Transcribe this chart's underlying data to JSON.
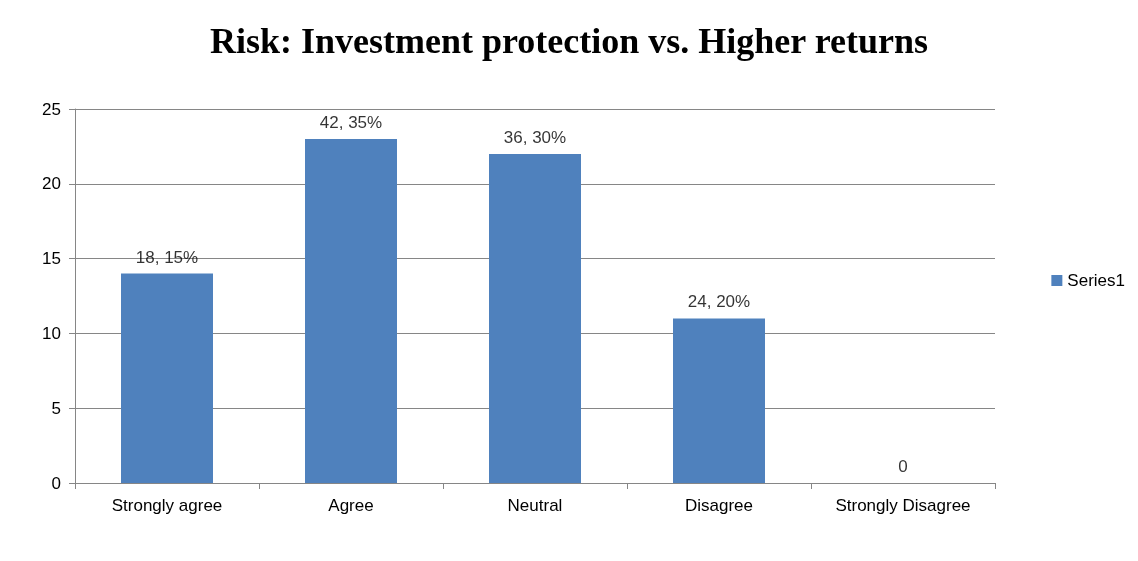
{
  "chart_data": {
    "type": "bar",
    "title": "Risk: Investment protection vs. Higher returns",
    "categories": [
      "Strongly agree",
      "Agree",
      "Neutral",
      "Disagree",
      "Strongly Disagree"
    ],
    "series": [
      {
        "name": "Series1",
        "color": "#4f81bd",
        "values": [
          14,
          23,
          22,
          11,
          0
        ]
      }
    ],
    "annotations": [
      {
        "text": "18, 15%",
        "x": "Strongly agree",
        "y": 14
      },
      {
        "text": "42, 35%",
        "x": "Agree",
        "y": 23
      },
      {
        "text": "36, 30%",
        "x": "Neutral",
        "y": 22
      },
      {
        "text": "24, 20%",
        "x": "Disagree",
        "y": 11
      },
      {
        "text": "0",
        "x": "Strongly Disagree",
        "y": 0
      }
    ],
    "ylim": [
      0,
      25
    ],
    "yticks": [
      0,
      5,
      10,
      15,
      20,
      25
    ],
    "grid": "y",
    "legend": "right"
  }
}
